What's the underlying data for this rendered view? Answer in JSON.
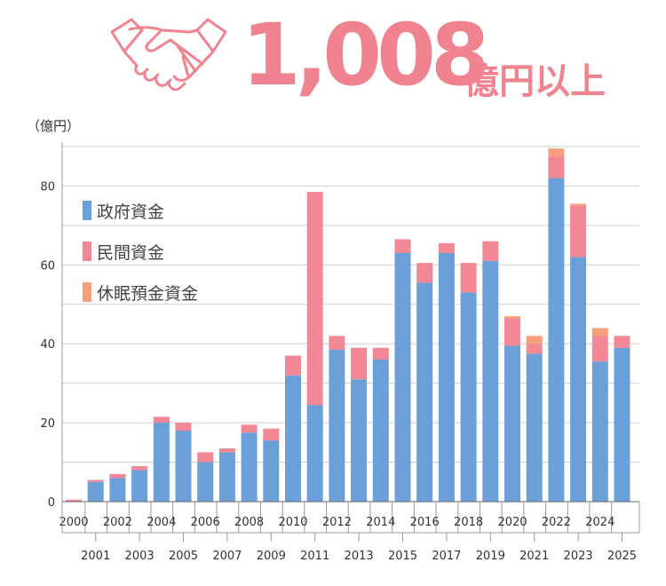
{
  "hero": {
    "figure": "1,008",
    "unit": "億円以上",
    "icon": "handshake-icon",
    "color": "#f0838f"
  },
  "chart_data": {
    "type": "bar",
    "stacked": true,
    "unit_label": "（億円）",
    "ylim": [
      0,
      90
    ],
    "y_ticks": [
      0,
      20,
      40,
      60,
      80
    ],
    "grid": true,
    "legend_position": "top-left",
    "categories": [
      "2000",
      "2001",
      "2002",
      "2003",
      "2004",
      "2005",
      "2006",
      "2007",
      "2008",
      "2009",
      "2010",
      "2011",
      "2012",
      "2013",
      "2014",
      "2015",
      "2016",
      "2017",
      "2018",
      "2019",
      "2020",
      "2021",
      "2022",
      "2023",
      "2024",
      "2025"
    ],
    "series": [
      {
        "name": "政府資金",
        "color": "#6a9fd8",
        "values": [
          0,
          5,
          6,
          8,
          20,
          18,
          10,
          12.5,
          17.5,
          15.5,
          32,
          24.5,
          38.5,
          31,
          36,
          63,
          55.5,
          63,
          53,
          61,
          39.5,
          37.5,
          82,
          62,
          35.5,
          39
        ]
      },
      {
        "name": "民間資金",
        "color": "#f28896",
        "values": [
          0.5,
          0.5,
          1,
          1,
          1.5,
          2,
          2.5,
          1,
          2,
          3,
          5,
          54,
          3.5,
          8,
          3,
          3.5,
          5,
          2.5,
          7.5,
          5,
          7,
          2.5,
          5.5,
          13,
          6.5,
          3
        ]
      },
      {
        "name": "休眠預金資金",
        "color": "#f5a07b",
        "values": [
          0,
          0,
          0,
          0,
          0,
          0,
          0,
          0,
          0,
          0,
          0,
          0,
          0,
          0,
          0,
          0,
          0,
          0,
          0,
          0,
          0.5,
          2,
          2,
          0.5,
          2,
          0
        ]
      }
    ]
  }
}
